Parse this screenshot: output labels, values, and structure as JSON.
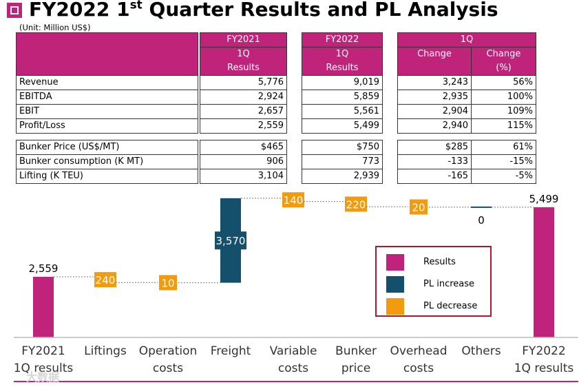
{
  "title_main": "FY2022 1",
  "title_sup": "st",
  "title_rest": " Quarter Results and PL Analysis",
  "unit_note": "(Unit: Million US$)",
  "colors": {
    "results": "#c0237a",
    "increase": "#144f6b",
    "decrease": "#f39b0f"
  },
  "table_headers": {
    "fy2021": "FY2021",
    "fy2021_sub1": "1Q",
    "fy2021_sub2": "Results",
    "fy2022": "FY2022",
    "fy2022_sub1": "1Q",
    "fy2022_sub2": "Results",
    "q1": "1Q",
    "change": "Change",
    "change_pct1": "Change",
    "change_pct2": "(%)"
  },
  "pl_rows": [
    {
      "label": "Revenue",
      "fy2021": "5,776",
      "fy2022": "9,019",
      "change": "3,243",
      "pct": "56%"
    },
    {
      "label": "EBITDA",
      "fy2021": "2,924",
      "fy2022": "5,859",
      "change": "2,935",
      "pct": "100%"
    },
    {
      "label": "EBIT",
      "fy2021": "2,657",
      "fy2022": "5,561",
      "change": "2,904",
      "pct": "109%"
    },
    {
      "label": "Profit/Loss",
      "fy2021": "2,559",
      "fy2022": "5,499",
      "change": "2,940",
      "pct": "115%"
    }
  ],
  "op_rows": [
    {
      "label": "Bunker Price (US$/MT)",
      "fy2021": "$465",
      "fy2022": "$750",
      "change": "$285",
      "pct": "61%"
    },
    {
      "label": "Bunker consumption (K MT)",
      "fy2021": "906",
      "fy2022": "773",
      "change": "-133",
      "pct": "-15%"
    },
    {
      "label": "Lifting (K TEU)",
      "fy2021": "3,104",
      "fy2022": "2,939",
      "change": "-165",
      "pct": "-5%"
    }
  ],
  "legend": {
    "results": "Results",
    "increase": "PL increase",
    "decrease": "PL decrease"
  },
  "watermark": "大数据",
  "chart_data": {
    "type": "bar",
    "subtype": "waterfall",
    "categories": [
      [
        "FY2021",
        "1Q results"
      ],
      [
        "Liftings"
      ],
      [
        "Operation",
        "costs"
      ],
      [
        "Freight"
      ],
      [
        "Variable",
        "costs"
      ],
      [
        "Bunker",
        "price"
      ],
      [
        "Overhead",
        "costs"
      ],
      [
        "Others"
      ],
      [
        "FY2022",
        "1Q results"
      ]
    ],
    "steps": [
      {
        "kind": "results",
        "value": 2559,
        "label": "2,559"
      },
      {
        "kind": "decrease",
        "value": 240,
        "label": "240"
      },
      {
        "kind": "decrease",
        "value": 10,
        "label": "10"
      },
      {
        "kind": "increase",
        "value": 3570,
        "label": "3,570"
      },
      {
        "kind": "decrease",
        "value": 140,
        "label": "140"
      },
      {
        "kind": "decrease",
        "value": 220,
        "label": "220"
      },
      {
        "kind": "decrease",
        "value": 20,
        "label": "20"
      },
      {
        "kind": "increase",
        "value": 0,
        "label": "0"
      },
      {
        "kind": "results",
        "value": 5499,
        "label": "5,499"
      }
    ],
    "ylim": [
      0,
      6000
    ],
    "grid": false,
    "legend_position": "center-right"
  }
}
